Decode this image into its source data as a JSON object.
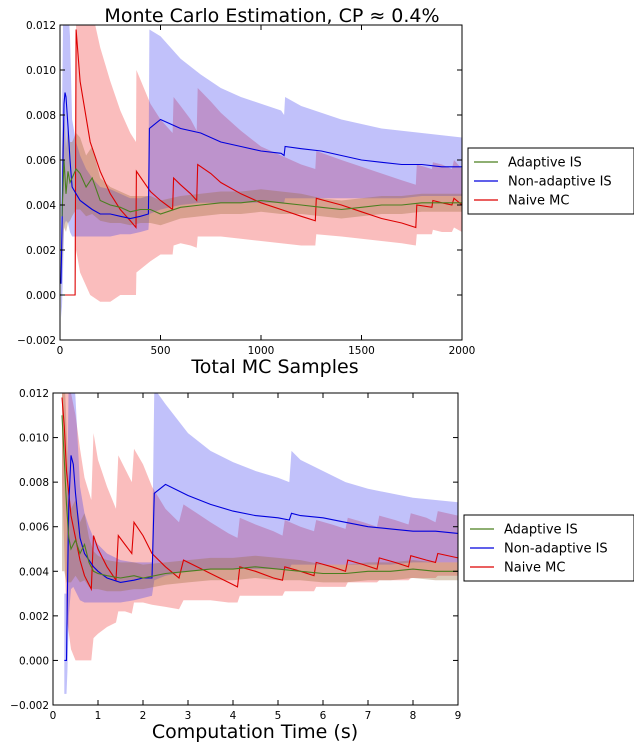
{
  "colors": {
    "adaptive": "#4a7f1f",
    "nonadaptive": "#0000dd",
    "naive": "#dd0000",
    "adaptive_band": "#9a6a3a",
    "nonadaptive_band": "#3333ee",
    "naive_band": "#ee3333"
  },
  "chart_data": [
    {
      "type": "line",
      "title": "Monte Carlo Estimation, CP ≈ 0.4%",
      "xlabel": "Total MC Samples",
      "ylabel": "",
      "xlim": [
        0,
        2000
      ],
      "ylim": [
        -0.002,
        0.012
      ],
      "xticks": [
        0,
        500,
        1000,
        1500,
        2000
      ],
      "xtick_labels": [
        "0",
        "500",
        "1000",
        "1500",
        "2000"
      ],
      "yticks": [
        -0.002,
        0.0,
        0.002,
        0.004,
        0.006,
        0.008,
        0.01,
        0.012
      ],
      "ytick_labels": [
        "−0.002",
        "0.000",
        "0.002",
        "0.004",
        "0.006",
        "0.008",
        "0.010",
        "0.012"
      ],
      "legend": [
        "Adaptive IS",
        "Non-adaptive IS",
        "Naive MC"
      ],
      "legend_placement": "outside-right",
      "grid": false,
      "series": [
        {
          "name": "Adaptive IS",
          "x": [
            10,
            20,
            30,
            40,
            50,
            60,
            80,
            100,
            130,
            160,
            200,
            250,
            300,
            350,
            400,
            450,
            500,
            600,
            700,
            800,
            900,
            1000,
            1100,
            1200,
            1300,
            1400,
            1500,
            1600,
            1700,
            1800,
            1900,
            2000
          ],
          "y": [
            0.0035,
            0.006,
            0.0045,
            0.0055,
            0.005,
            0.0052,
            0.0056,
            0.0054,
            0.0048,
            0.0052,
            0.0042,
            0.004,
            0.0039,
            0.0037,
            0.0038,
            0.0038,
            0.0036,
            0.0039,
            0.004,
            0.0041,
            0.0041,
            0.0042,
            0.0041,
            0.004,
            0.0039,
            0.0038,
            0.0039,
            0.004,
            0.004,
            0.0041,
            0.0041,
            0.0041
          ],
          "lower": [
            0.001,
            0.003,
            0.0028,
            0.0032,
            0.0033,
            0.0035,
            0.0038,
            0.0038,
            0.0035,
            0.0036,
            0.0033,
            0.0032,
            0.0032,
            0.0031,
            0.0032,
            0.0032,
            0.0031,
            0.0034,
            0.0035,
            0.0036,
            0.0036,
            0.0037,
            0.0036,
            0.0036,
            0.0035,
            0.0034,
            0.0035,
            0.0036,
            0.0036,
            0.0037,
            0.0037,
            0.0037
          ],
          "upper": [
            0.0065,
            0.0085,
            0.0065,
            0.0075,
            0.0068,
            0.0068,
            0.0072,
            0.007,
            0.0062,
            0.0066,
            0.0052,
            0.0048,
            0.0046,
            0.0044,
            0.0044,
            0.0044,
            0.0042,
            0.0044,
            0.0045,
            0.0046,
            0.0046,
            0.0047,
            0.0046,
            0.0045,
            0.0043,
            0.0042,
            0.0043,
            0.0044,
            0.0044,
            0.0045,
            0.0045,
            0.0045
          ]
        },
        {
          "name": "Non-adaptive IS",
          "x": [
            5,
            10,
            15,
            20,
            25,
            30,
            40,
            50,
            60,
            80,
            100,
            130,
            160,
            200,
            250,
            300,
            350,
            400,
            440,
            445,
            500,
            600,
            700,
            800,
            900,
            1000,
            1100,
            1115,
            1120,
            1200,
            1300,
            1400,
            1500,
            1600,
            1700,
            1800,
            1900,
            2000
          ],
          "y": [
            0.0005,
            0.003,
            0.006,
            0.0085,
            0.009,
            0.0088,
            0.0075,
            0.006,
            0.0048,
            0.0045,
            0.0042,
            0.004,
            0.0038,
            0.0036,
            0.0036,
            0.0035,
            0.0034,
            0.0035,
            0.0036,
            0.0074,
            0.0078,
            0.0074,
            0.0072,
            0.0068,
            0.0066,
            0.0064,
            0.0063,
            0.0062,
            0.0066,
            0.0065,
            0.0064,
            0.0062,
            0.006,
            0.0059,
            0.0058,
            0.0058,
            0.0057,
            0.0057
          ],
          "lower": [
            -0.001,
            -0.0005,
            0.001,
            0.003,
            0.0032,
            0.0033,
            0.0032,
            0.0028,
            0.0026,
            0.0026,
            0.0026,
            0.0026,
            0.0026,
            0.0026,
            0.0026,
            0.0027,
            0.0027,
            0.0028,
            0.0029,
            0.0036,
            0.0038,
            0.004,
            0.0041,
            0.0041,
            0.0041,
            0.0041,
            0.0041,
            0.0041,
            0.0043,
            0.0043,
            0.0043,
            0.0043,
            0.0043,
            0.0043,
            0.0043,
            0.0044,
            0.0044,
            0.0044
          ],
          "upper": [
            0.004,
            0.008,
            0.012,
            0.013,
            0.013,
            0.013,
            0.013,
            0.0115,
            0.0078,
            0.0068,
            0.0062,
            0.0056,
            0.0052,
            0.0048,
            0.0047,
            0.0045,
            0.0043,
            0.0043,
            0.0044,
            0.0118,
            0.0115,
            0.0105,
            0.0098,
            0.0092,
            0.0088,
            0.0085,
            0.0082,
            0.008,
            0.0088,
            0.0084,
            0.0081,
            0.0078,
            0.0076,
            0.0074,
            0.0073,
            0.0072,
            0.0071,
            0.007
          ]
        },
        {
          "name": "Naive MC",
          "x": [
            0,
            75,
            80,
            100,
            150,
            200,
            250,
            300,
            350,
            378,
            380,
            450,
            500,
            560,
            565,
            600,
            650,
            680,
            685,
            750,
            800,
            900,
            1000,
            1100,
            1200,
            1270,
            1275,
            1400,
            1500,
            1600,
            1700,
            1770,
            1775,
            1850,
            1855,
            1900,
            1950,
            1960,
            2000
          ],
          "y": [
            0.0,
            0.0,
            0.0118,
            0.0095,
            0.0068,
            0.0055,
            0.0045,
            0.0038,
            0.0033,
            0.003,
            0.0055,
            0.0046,
            0.0042,
            0.0038,
            0.0052,
            0.0049,
            0.0045,
            0.0042,
            0.0058,
            0.0054,
            0.005,
            0.0045,
            0.0041,
            0.0038,
            0.0035,
            0.0033,
            0.0043,
            0.004,
            0.0037,
            0.0034,
            0.0032,
            0.003,
            0.004,
            0.0039,
            0.0042,
            0.0041,
            0.004,
            0.0043,
            0.004
          ],
          "lower": [
            0.0,
            0.0,
            0.002,
            0.001,
            0.0,
            -0.0003,
            -0.0003,
            0.0,
            0.0,
            0.0,
            0.001,
            0.0015,
            0.0018,
            0.0018,
            0.0022,
            0.0023,
            0.0022,
            0.0021,
            0.0026,
            0.0026,
            0.0026,
            0.0025,
            0.0024,
            0.0023,
            0.0022,
            0.0022,
            0.0027,
            0.0026,
            0.0025,
            0.0024,
            0.0023,
            0.0022,
            0.0027,
            0.0027,
            0.0029,
            0.0028,
            0.0028,
            0.003,
            0.0028
          ],
          "upper": [
            0.0,
            0.0,
            0.013,
            0.013,
            0.013,
            0.011,
            0.0095,
            0.0082,
            0.0072,
            0.0068,
            0.01,
            0.0085,
            0.0078,
            0.0072,
            0.0088,
            0.0084,
            0.0078,
            0.0073,
            0.0092,
            0.0086,
            0.0081,
            0.0073,
            0.0066,
            0.0062,
            0.0058,
            0.0056,
            0.0064,
            0.006,
            0.0057,
            0.0054,
            0.0051,
            0.0049,
            0.0058,
            0.0056,
            0.0059,
            0.0058,
            0.0056,
            0.006,
            0.0056
          ]
        }
      ]
    },
    {
      "type": "line",
      "title": "",
      "xlabel": "Computation Time (s)",
      "ylabel": "",
      "xlim": [
        0,
        9
      ],
      "ylim": [
        -0.002,
        0.012
      ],
      "xticks": [
        0,
        1,
        2,
        3,
        4,
        5,
        6,
        7,
        8,
        9
      ],
      "xtick_labels": [
        "0",
        "1",
        "2",
        "3",
        "4",
        "5",
        "6",
        "7",
        "8",
        "9"
      ],
      "yticks": [
        -0.002,
        0.0,
        0.002,
        0.004,
        0.006,
        0.008,
        0.01,
        0.012
      ],
      "ytick_labels": [
        "−0.002",
        "0.000",
        "0.002",
        "0.004",
        "0.006",
        "0.008",
        "0.010",
        "0.012"
      ],
      "legend": [
        "Adaptive IS",
        "Non-adaptive IS",
        "Naive MC"
      ],
      "legend_placement": "outside-right",
      "grid": false,
      "series": [
        {
          "name": "Adaptive IS",
          "x": [
            0.2,
            0.25,
            0.3,
            0.35,
            0.4,
            0.5,
            0.6,
            0.7,
            0.8,
            0.9,
            1.0,
            1.2,
            1.5,
            1.8,
            2.0,
            2.5,
            3.0,
            3.5,
            4.0,
            4.5,
            5.0,
            5.5,
            6.0,
            6.5,
            7.0,
            7.5,
            8.0,
            8.5,
            9.0
          ],
          "y": [
            0.011,
            0.009,
            0.007,
            0.0055,
            0.005,
            0.0054,
            0.0048,
            0.0052,
            0.0044,
            0.004,
            0.0039,
            0.0038,
            0.0037,
            0.0038,
            0.0037,
            0.0039,
            0.004,
            0.0041,
            0.0041,
            0.0042,
            0.0041,
            0.004,
            0.0039,
            0.0039,
            0.004,
            0.004,
            0.0041,
            0.004,
            0.004
          ],
          "lower": [
            0.004,
            0.004,
            0.0035,
            0.0035,
            0.0035,
            0.0038,
            0.0035,
            0.0036,
            0.0033,
            0.0032,
            0.0032,
            0.0031,
            0.0031,
            0.0032,
            0.0032,
            0.0034,
            0.0035,
            0.0036,
            0.0036,
            0.0037,
            0.0036,
            0.0036,
            0.0035,
            0.0035,
            0.0036,
            0.0036,
            0.0037,
            0.0036,
            0.0036
          ],
          "upper": [
            0.013,
            0.013,
            0.0105,
            0.0078,
            0.0068,
            0.0072,
            0.0062,
            0.0066,
            0.0055,
            0.0049,
            0.0047,
            0.0045,
            0.0044,
            0.0044,
            0.0043,
            0.0044,
            0.0045,
            0.0046,
            0.0046,
            0.0047,
            0.0046,
            0.0045,
            0.0043,
            0.0043,
            0.0044,
            0.0044,
            0.0045,
            0.0044,
            0.0044
          ]
        },
        {
          "name": "Non-adaptive IS",
          "x": [
            0.25,
            0.3,
            0.32,
            0.35,
            0.4,
            0.45,
            0.5,
            0.6,
            0.7,
            0.8,
            0.9,
            1.0,
            1.2,
            1.5,
            1.8,
            2.0,
            2.2,
            2.25,
            2.5,
            3.0,
            3.5,
            4.0,
            4.5,
            5.0,
            5.25,
            5.3,
            5.5,
            6.0,
            6.5,
            7.0,
            7.5,
            8.0,
            8.5,
            9.0
          ],
          "y": [
            0.0,
            0.0,
            0.003,
            0.007,
            0.0092,
            0.0088,
            0.0075,
            0.0055,
            0.0048,
            0.0045,
            0.0042,
            0.004,
            0.0037,
            0.0035,
            0.0036,
            0.0037,
            0.0037,
            0.0075,
            0.0079,
            0.0074,
            0.007,
            0.0067,
            0.0065,
            0.0064,
            0.0063,
            0.0066,
            0.0065,
            0.0064,
            0.0062,
            0.006,
            0.0059,
            0.0058,
            0.0058,
            0.0057
          ],
          "lower": [
            -0.0015,
            -0.0015,
            -0.0005,
            0.002,
            0.0032,
            0.0033,
            0.0031,
            0.0027,
            0.0026,
            0.0026,
            0.0026,
            0.0026,
            0.0026,
            0.0026,
            0.0027,
            0.0028,
            0.0029,
            0.0036,
            0.0038,
            0.004,
            0.0041,
            0.0041,
            0.0041,
            0.0041,
            0.0041,
            0.0043,
            0.0043,
            0.0043,
            0.0043,
            0.0043,
            0.0043,
            0.0044,
            0.0044,
            0.0044
          ],
          "upper": [
            0.003,
            0.003,
            0.008,
            0.013,
            0.013,
            0.013,
            0.0118,
            0.0078,
            0.0066,
            0.006,
            0.0055,
            0.0052,
            0.0048,
            0.0045,
            0.0044,
            0.0044,
            0.0044,
            0.0122,
            0.0115,
            0.0102,
            0.0094,
            0.0089,
            0.0085,
            0.0082,
            0.008,
            0.0094,
            0.009,
            0.0085,
            0.008,
            0.0077,
            0.0075,
            0.0073,
            0.0072,
            0.0071
          ]
        },
        {
          "name": "Naive MC",
          "x": [
            0.2,
            0.25,
            0.3,
            0.4,
            0.5,
            0.6,
            0.7,
            0.85,
            0.9,
            1.0,
            1.2,
            1.4,
            1.45,
            1.6,
            1.75,
            1.8,
            2.0,
            2.2,
            2.5,
            2.8,
            2.9,
            3.2,
            3.5,
            3.9,
            4.1,
            4.15,
            4.5,
            4.9,
            5.1,
            5.15,
            5.5,
            5.8,
            5.85,
            6.2,
            6.5,
            6.55,
            6.9,
            7.2,
            7.25,
            7.6,
            7.9,
            7.95,
            8.3,
            8.5,
            8.55,
            9.0
          ],
          "y": [
            0.0118,
            0.0105,
            0.0085,
            0.0065,
            0.0055,
            0.0045,
            0.0038,
            0.0032,
            0.0056,
            0.005,
            0.0042,
            0.0036,
            0.0056,
            0.0052,
            0.0048,
            0.0062,
            0.0056,
            0.0048,
            0.0042,
            0.0037,
            0.0045,
            0.0042,
            0.0039,
            0.0035,
            0.0033,
            0.0042,
            0.004,
            0.0037,
            0.0036,
            0.0042,
            0.004,
            0.0038,
            0.0044,
            0.0042,
            0.004,
            0.0045,
            0.0043,
            0.0041,
            0.0046,
            0.0044,
            0.0042,
            0.0047,
            0.0045,
            0.0044,
            0.0048,
            0.0046
          ],
          "lower": [
            0.008,
            0.005,
            0.002,
            0.0005,
            0.0,
            0.0,
            0.0,
            0.0,
            0.001,
            0.0012,
            0.0015,
            0.0017,
            0.0022,
            0.0022,
            0.0021,
            0.0026,
            0.0026,
            0.0025,
            0.0024,
            0.0023,
            0.0027,
            0.0027,
            0.0027,
            0.0026,
            0.0026,
            0.0029,
            0.0029,
            0.0029,
            0.0029,
            0.0031,
            0.0031,
            0.0031,
            0.0033,
            0.0033,
            0.0033,
            0.0035,
            0.0035,
            0.0035,
            0.0036,
            0.0036,
            0.0036,
            0.0037,
            0.0037,
            0.0037,
            0.0038,
            0.0038
          ],
          "upper": [
            0.013,
            0.013,
            0.013,
            0.012,
            0.011,
            0.0095,
            0.0082,
            0.0072,
            0.0102,
            0.009,
            0.0078,
            0.0068,
            0.0092,
            0.0086,
            0.008,
            0.0095,
            0.0088,
            0.0078,
            0.0068,
            0.0062,
            0.007,
            0.0066,
            0.0062,
            0.0057,
            0.0055,
            0.0064,
            0.0061,
            0.0058,
            0.0056,
            0.0063,
            0.006,
            0.0058,
            0.0063,
            0.0061,
            0.0059,
            0.0064,
            0.0062,
            0.006,
            0.0065,
            0.0063,
            0.0061,
            0.0066,
            0.0064,
            0.0062,
            0.0067,
            0.0065
          ]
        }
      ]
    }
  ]
}
